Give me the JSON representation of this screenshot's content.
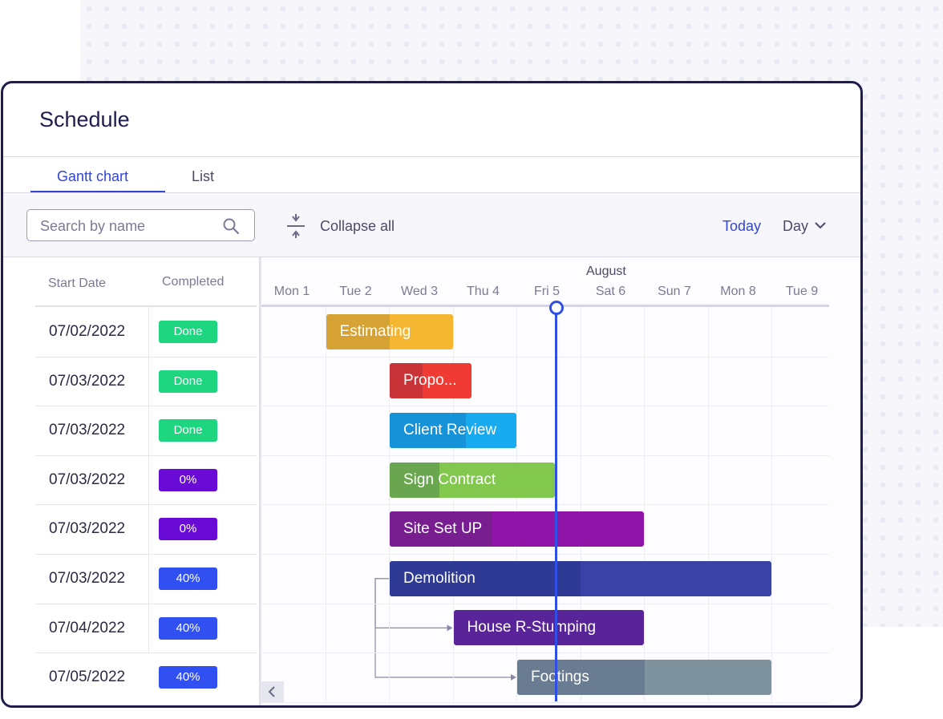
{
  "page": {
    "title": "Schedule"
  },
  "tabs": [
    {
      "label": "Gantt chart",
      "active": true
    },
    {
      "label": "List",
      "active": false
    }
  ],
  "toolbar": {
    "search_placeholder": "Search by name",
    "collapse_label": "Collapse all",
    "today_label": "Today",
    "view_label": "Day"
  },
  "table": {
    "headers": {
      "start_date": "Start Date",
      "completed": "Completed"
    },
    "rows": [
      {
        "start": "07/02/2022",
        "status": "Done",
        "status_color": "#1ed67f"
      },
      {
        "start": "07/03/2022",
        "status": "Done",
        "status_color": "#1ed67f"
      },
      {
        "start": "07/03/2022",
        "status": "Done",
        "status_color": "#1ed67f"
      },
      {
        "start": "07/03/2022",
        "status": "0%",
        "status_color": "#6a0ad6"
      },
      {
        "start": "07/03/2022",
        "status": "0%",
        "status_color": "#6a0ad6"
      },
      {
        "start": "07/03/2022",
        "status": "40%",
        "status_color": "#3150f2"
      },
      {
        "start": "07/04/2022",
        "status": "40%",
        "status_color": "#3150f2"
      },
      {
        "start": "07/05/2022",
        "status": "40%",
        "status_color": "#3150f2"
      }
    ]
  },
  "timeline": {
    "month": "August",
    "days": [
      "Mon 1",
      "Tue 2",
      "Wed 3",
      "Thu 4",
      "Fri 5",
      "Sat 6",
      "Sun 7",
      "Mon 8",
      "Tue 9"
    ],
    "today_day_index": 4,
    "tasks": [
      {
        "name": "Estimating",
        "start_day": 1,
        "duration_days": 2,
        "progress": 0.5,
        "color": "#f5b731",
        "done_color": "#d6a234"
      },
      {
        "name": "Propo...",
        "start_day": 2,
        "duration_days": 1.3,
        "progress": 0.4,
        "color": "#ef3b34",
        "done_color": "#c93237"
      },
      {
        "name": "Client Review",
        "start_day": 2,
        "duration_days": 2,
        "progress": 0.6,
        "color": "#17aaee",
        "done_color": "#1592d8"
      },
      {
        "name": "Sign Contract",
        "start_day": 2,
        "duration_days": 2.6,
        "progress": 0.3,
        "color": "#82c84e",
        "done_color": "#6aa64f"
      },
      {
        "name": "Site Set UP",
        "start_day": 2,
        "duration_days": 4,
        "progress": 0.4,
        "color": "#8e15a8",
        "done_color": "#781e91"
      },
      {
        "name": "Demolition",
        "start_day": 2,
        "duration_days": 6,
        "progress": 0.5,
        "color": "#3a42a6",
        "done_color": "#2e3a93"
      },
      {
        "name": "House R-Stumping",
        "start_day": 3,
        "duration_days": 3,
        "progress": 0.0,
        "color": "#5a2499",
        "done_color": "#5a2499"
      },
      {
        "name": "Footings",
        "start_day": 4,
        "duration_days": 4,
        "progress": 0.5,
        "color": "#7e929e",
        "done_color": "#6a7c92"
      }
    ],
    "dependencies": [
      {
        "from": "Demolition",
        "to": "House R-Stumping"
      },
      {
        "from": "Demolition",
        "to": "Footings"
      }
    ]
  }
}
